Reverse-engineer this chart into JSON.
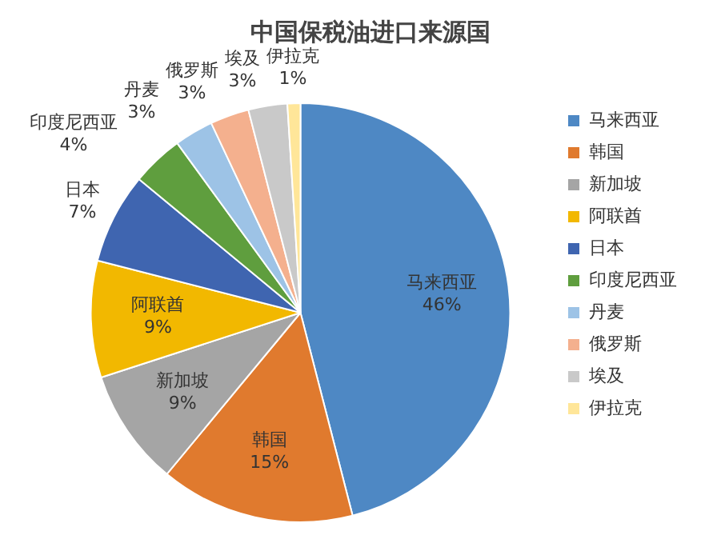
{
  "chart_data": {
    "type": "pie",
    "title": "中国保税油进口来源国",
    "categories": [
      "马来西亚",
      "韩国",
      "新加坡",
      "阿联酋",
      "日本",
      "印度尼西亚",
      "丹麦",
      "俄罗斯",
      "埃及",
      "伊拉克"
    ],
    "values": [
      46,
      15,
      9,
      9,
      7,
      4,
      3,
      3,
      3,
      1
    ],
    "value_labels": [
      "46%",
      "15%",
      "9%",
      "9%",
      "7%",
      "4%",
      "3%",
      "3%",
      "3%",
      "1%"
    ],
    "colors": [
      "#4e88c4",
      "#e07a2e",
      "#a5a5a5",
      "#f2b800",
      "#3f65b0",
      "#5f9e3e",
      "#9dc3e6",
      "#f4b08e",
      "#c9c9c9",
      "#ffe699"
    ],
    "legend": "right"
  }
}
